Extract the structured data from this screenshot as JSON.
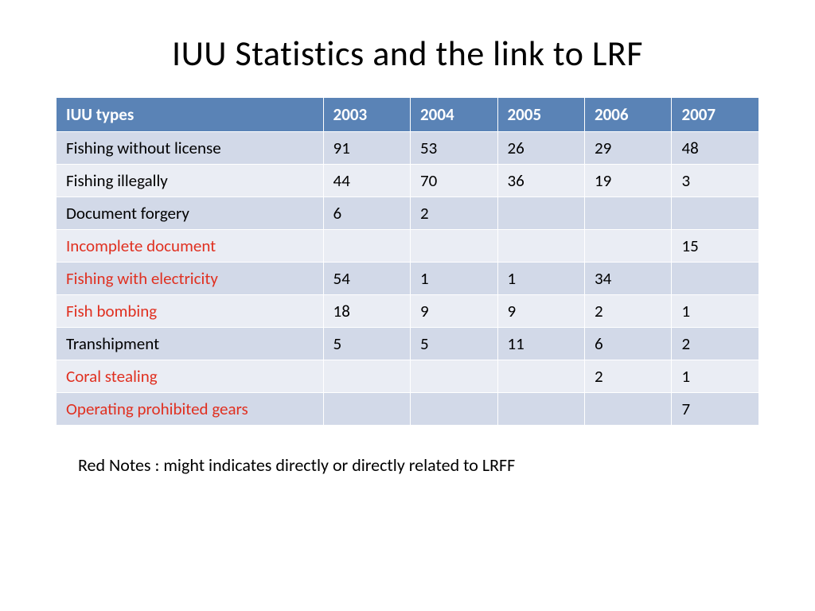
{
  "title": "IUU Statistics and the link to LRF",
  "table": {
    "columns": [
      "IUU types",
      "2003",
      "2004",
      "2005",
      "2006",
      "2007"
    ],
    "header_bg": "#5a83b6",
    "header_text_color": "#ffffff",
    "band_a_bg": "#d2d9e8",
    "band_b_bg": "#eaedf4",
    "red_label_color": "#e03020",
    "rows": [
      {
        "label": "Fishing without license",
        "red": false,
        "cells": [
          "91",
          "53",
          "26",
          "29",
          "48"
        ]
      },
      {
        "label": "Fishing illegally",
        "red": false,
        "cells": [
          "44",
          "70",
          "36",
          "19",
          "3"
        ]
      },
      {
        "label": "Document forgery",
        "red": false,
        "cells": [
          "6",
          "2",
          "",
          "",
          ""
        ]
      },
      {
        "label": "Incomplete document",
        "red": true,
        "cells": [
          "",
          "",
          "",
          "",
          "15"
        ]
      },
      {
        "label": "Fishing with electricity",
        "red": true,
        "cells": [
          "54",
          "1",
          "1",
          "34",
          ""
        ]
      },
      {
        "label": "Fish bombing",
        "red": true,
        "cells": [
          "18",
          "9",
          "9",
          "2",
          "1"
        ]
      },
      {
        "label": "Transhipment",
        "red": false,
        "cells": [
          "5",
          "5",
          "11",
          "6",
          "2"
        ]
      },
      {
        "label": "Coral stealing",
        "red": true,
        "cells": [
          "",
          "",
          "",
          "2",
          "1"
        ]
      },
      {
        "label": "Operating prohibited gears",
        "red": true,
        "cells": [
          "",
          "",
          "",
          "",
          "7"
        ]
      }
    ]
  },
  "footnote": "Red Notes : might indicates directly or directly related to LRFF"
}
